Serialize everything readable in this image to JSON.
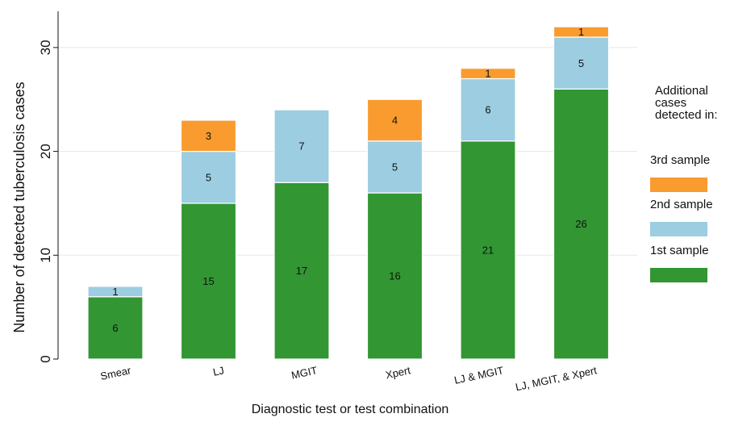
{
  "chart_data": {
    "type": "bar",
    "stacked": true,
    "categories": [
      "Smear",
      "LJ",
      "MGIT",
      "Xpert",
      "LJ & MGIT",
      "LJ, MGIT, & Xpert"
    ],
    "series": [
      {
        "name": "1st sample",
        "color": "#329632",
        "values": [
          6,
          15,
          17,
          16,
          21,
          26
        ]
      },
      {
        "name": "2nd sample",
        "color": "#9ccde0",
        "values": [
          1,
          5,
          7,
          5,
          6,
          5
        ]
      },
      {
        "name": "3rd sample",
        "color": "#f99b2f",
        "values": [
          0,
          3,
          0,
          4,
          1,
          1
        ]
      }
    ],
    "xlabel": "Diagnostic test or test combination",
    "ylabel": "Number of detected tuberculosis cases",
    "ylim": [
      0,
      33.5
    ],
    "yticks": [
      0,
      10,
      20,
      30
    ],
    "grid": true,
    "legend": {
      "title": "Additional cases detected in:",
      "placement": "right",
      "order": [
        "3rd sample",
        "2nd sample",
        "1st sample"
      ]
    }
  }
}
